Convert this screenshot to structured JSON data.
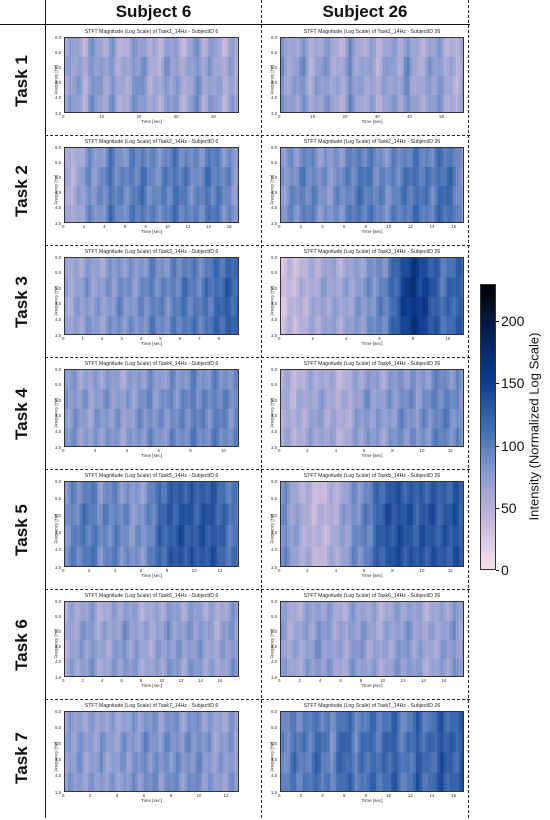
{
  "columns": [
    "Subject 6",
    "Subject 26"
  ],
  "rows": [
    "Task 1",
    "Task 2",
    "Task 3",
    "Task 4",
    "Task 5",
    "Task 6",
    "Task 7"
  ],
  "colorbar": {
    "label": "Intensity (Normalized Log Scale)",
    "ticks": [
      "0",
      "50",
      "100",
      "150",
      "200"
    ],
    "range": [
      0,
      230
    ],
    "colors": [
      "#f8e4ef",
      "#c9b9dc",
      "#8d9dd0",
      "#3f6cb0",
      "#0d3b8c",
      "#051f52",
      "#000000"
    ]
  },
  "chart_data": [
    {
      "type": "heatmap",
      "title": "STFT Magnitude (Log Scale) of Task1_14Hz - SubjectID 6",
      "xlabel": "Time [sec]",
      "ylabel": "Frequency [Hz]",
      "xticks": [
        "0",
        "10",
        "20",
        "30",
        "40"
      ],
      "xlim": [
        0,
        47
      ],
      "yticks": [
        "3.5",
        "4.0",
        "4.5",
        "5.0",
        "5.5",
        "6.0"
      ],
      "ylim": [
        3.5,
        6.0
      ],
      "intensity_profile": [
        0.35,
        0.45,
        0.3,
        0.5,
        0.35,
        0.45,
        0.3,
        0.4,
        0.5,
        0.35,
        0.3,
        0.45,
        0.4,
        0.3,
        0.5,
        0.35,
        0.45,
        0.3,
        0.4,
        0.35
      ]
    },
    {
      "type": "heatmap",
      "title": "STFT Magnitude (Log Scale) of Task1_14Hz - SubjectID 26",
      "xlabel": "Time [sec]",
      "ylabel": "Frequency [Hz]",
      "xticks": [
        "0",
        "10",
        "20",
        "30",
        "40",
        "50"
      ],
      "xlim": [
        0,
        57
      ],
      "yticks": [
        "3.5",
        "4.0",
        "4.5",
        "5.0",
        "5.5",
        "6.0"
      ],
      "ylim": [
        3.5,
        6.0
      ],
      "intensity_profile": [
        0.45,
        0.35,
        0.5,
        0.3,
        0.45,
        0.4,
        0.3,
        0.5,
        0.35,
        0.4,
        0.3,
        0.45,
        0.35,
        0.5,
        0.3,
        0.4,
        0.45,
        0.35,
        0.3,
        0.4
      ]
    },
    {
      "type": "heatmap",
      "title": "STFT Magnitude (Log Scale) of Task2_14Hz - SubjectID 6",
      "xlabel": "Time [sec]",
      "ylabel": "Frequency [Hz]",
      "xticks": [
        "0",
        "2",
        "4",
        "6",
        "8",
        "10",
        "12",
        "14",
        "16"
      ],
      "xlim": [
        0,
        17
      ],
      "yticks": [
        "3.5",
        "4.0",
        "4.5",
        "5.0",
        "5.5",
        "6.0"
      ],
      "ylim": [
        3.5,
        6.0
      ],
      "intensity_profile": [
        0.3,
        0.35,
        0.5,
        0.45,
        0.6,
        0.5,
        0.55,
        0.6,
        0.5,
        0.55,
        0.6,
        0.55,
        0.5,
        0.6,
        0.55,
        0.5,
        0.4
      ]
    },
    {
      "type": "heatmap",
      "title": "STFT Magnitude (Log Scale) of Task2_14Hz - SubjectID 26",
      "xlabel": "Time [sec]",
      "ylabel": "Frequency [Hz]",
      "xticks": [
        "0",
        "2",
        "4",
        "6",
        "8",
        "10",
        "12",
        "14",
        "16"
      ],
      "xlim": [
        0,
        17
      ],
      "yticks": [
        "3.5",
        "4.0",
        "4.5",
        "5.0",
        "5.5",
        "6.0"
      ],
      "ylim": [
        3.5,
        6.0
      ],
      "intensity_profile": [
        0.45,
        0.5,
        0.55,
        0.5,
        0.45,
        0.5,
        0.55,
        0.6,
        0.55,
        0.5,
        0.55,
        0.6,
        0.6,
        0.55,
        0.65,
        0.6,
        0.3
      ]
    },
    {
      "type": "heatmap",
      "title": "STFT Magnitude (Log Scale) of Task3_14Hz - SubjectID 6",
      "xlabel": "Time [sec]",
      "ylabel": "Frequency [Hz]",
      "xticks": [
        "0",
        "1",
        "2",
        "3",
        "4",
        "5",
        "6",
        "7",
        "8"
      ],
      "xlim": [
        0,
        9
      ],
      "yticks": [
        "3.5",
        "4.0",
        "4.5",
        "5.0",
        "5.5",
        "6.0"
      ],
      "ylim": [
        3.5,
        6.0
      ],
      "intensity_profile": [
        0.35,
        0.4,
        0.45,
        0.4,
        0.45,
        0.5,
        0.45,
        0.5,
        0.55,
        0.5,
        0.55,
        0.6,
        0.55,
        0.6,
        0.65,
        0.7,
        0.6
      ]
    },
    {
      "type": "heatmap",
      "title": "STFT Magnitude (Log Scale) of Task3_14Hz - SubjectID 26",
      "xlabel": "Time [sec]",
      "ylabel": "Frequency [Hz]",
      "xticks": [
        "0",
        "2",
        "4",
        "6",
        "8",
        "10"
      ],
      "xlim": [
        0,
        11
      ],
      "yticks": [
        "3.5",
        "4.0",
        "4.5",
        "5.0",
        "5.5",
        "6.0"
      ],
      "ylim": [
        3.5,
        6.0
      ],
      "intensity_profile": [
        0.2,
        0.25,
        0.3,
        0.35,
        0.4,
        0.35,
        0.4,
        0.45,
        0.5,
        0.55,
        0.7,
        0.9,
        0.85,
        0.75,
        0.6,
        0.7,
        0.65
      ]
    },
    {
      "type": "heatmap",
      "title": "STFT Magnitude (Log Scale) of Task4_14Hz - SubjectID 6",
      "xlabel": "Time [sec]",
      "ylabel": "Frequency [Hz]",
      "xticks": [
        "0",
        "2",
        "4",
        "6",
        "8",
        "10"
      ],
      "xlim": [
        0,
        11
      ],
      "yticks": [
        "3.5",
        "4.0",
        "4.5",
        "5.0",
        "5.5",
        "6.0"
      ],
      "ylim": [
        3.5,
        6.0
      ],
      "intensity_profile": [
        0.45,
        0.45,
        0.4,
        0.45,
        0.45,
        0.4,
        0.45,
        0.5,
        0.45,
        0.5,
        0.5,
        0.55,
        0.5,
        0.55,
        0.5,
        0.5
      ]
    },
    {
      "type": "heatmap",
      "title": "STFT Magnitude (Log Scale) of Task4_14Hz - SubjectID 26",
      "xlabel": "Time [sec]",
      "ylabel": "Frequency [Hz]",
      "xticks": [
        "0",
        "2",
        "4",
        "6",
        "8",
        "10",
        "12"
      ],
      "xlim": [
        0,
        13
      ],
      "yticks": [
        "3.5",
        "4.0",
        "4.5",
        "5.0",
        "5.5",
        "6.0"
      ],
      "ylim": [
        3.5,
        6.0
      ],
      "intensity_profile": [
        0.35,
        0.3,
        0.35,
        0.4,
        0.35,
        0.3,
        0.4,
        0.45,
        0.4,
        0.45,
        0.5,
        0.45,
        0.5,
        0.55,
        0.5,
        0.45
      ]
    },
    {
      "type": "heatmap",
      "title": "STFT Magnitude (Log Scale) of Task5_14Hz - SubjectID 6",
      "xlabel": "Time [sec]",
      "ylabel": "Frequency [Hz]",
      "xticks": [
        "0",
        "2",
        "4",
        "6",
        "8",
        "10",
        "12"
      ],
      "xlim": [
        0,
        13.5
      ],
      "yticks": [
        "3.5",
        "4.0",
        "4.5",
        "5.0",
        "5.5",
        "6.0"
      ],
      "ylim": [
        3.5,
        6.0
      ],
      "intensity_profile": [
        0.5,
        0.55,
        0.6,
        0.5,
        0.55,
        0.5,
        0.45,
        0.5,
        0.65,
        0.7,
        0.75,
        0.7,
        0.75,
        0.7,
        0.6,
        0.55
      ]
    },
    {
      "type": "heatmap",
      "title": "STFT Magnitude (Log Scale) of Task5_14Hz - SubjectID 26",
      "xlabel": "Time [sec]",
      "ylabel": "Frequency [Hz]",
      "xticks": [
        "0",
        "2",
        "4",
        "6",
        "8",
        "10",
        "12"
      ],
      "xlim": [
        0,
        13
      ],
      "yticks": [
        "3.5",
        "4.0",
        "4.5",
        "5.0",
        "5.5",
        "6.0"
      ],
      "ylim": [
        3.5,
        6.0
      ],
      "intensity_profile": [
        0.5,
        0.4,
        0.3,
        0.25,
        0.3,
        0.4,
        0.5,
        0.55,
        0.7,
        0.75,
        0.75,
        0.7,
        0.75,
        0.7,
        0.75,
        0.7
      ]
    },
    {
      "type": "heatmap",
      "title": "STFT Magnitude (Log Scale) of Task6_14Hz - SubjectID 6",
      "xlabel": "Time [sec]",
      "ylabel": "Frequency [Hz]",
      "xticks": [
        "0",
        "2",
        "4",
        "6",
        "8",
        "10",
        "12",
        "14",
        "16"
      ],
      "xlim": [
        0,
        18
      ],
      "yticks": [
        "3.5",
        "4.0",
        "4.5",
        "5.0",
        "5.5",
        "6.0"
      ],
      "ylim": [
        3.5,
        6.0
      ],
      "intensity_profile": [
        0.35,
        0.4,
        0.45,
        0.35,
        0.4,
        0.45,
        0.4,
        0.35,
        0.4,
        0.45,
        0.4,
        0.45,
        0.4,
        0.35,
        0.45,
        0.4
      ]
    },
    {
      "type": "heatmap",
      "title": "STFT Magnitude (Log Scale) of Task6_14Hz - SubjectID 26",
      "xlabel": "Time [sec]",
      "ylabel": "Frequency [Hz]",
      "xticks": [
        "0",
        "2",
        "4",
        "6",
        "8",
        "10",
        "12",
        "14",
        "16"
      ],
      "xlim": [
        0,
        18
      ],
      "yticks": [
        "3.5",
        "4.0",
        "4.5",
        "5.0",
        "5.5",
        "6.0"
      ],
      "ylim": [
        3.5,
        6.0
      ],
      "intensity_profile": [
        0.4,
        0.35,
        0.4,
        0.45,
        0.4,
        0.35,
        0.45,
        0.4,
        0.35,
        0.4,
        0.45,
        0.4,
        0.35,
        0.4,
        0.45,
        0.4
      ]
    },
    {
      "type": "heatmap",
      "title": "STFT Magnitude (Log Scale) of Task7_14Hz - SubjectID 6",
      "xlabel": "Time [sec]",
      "ylabel": "Frequency [Hz]",
      "xticks": [
        "0",
        "2",
        "4",
        "6",
        "8",
        "10",
        "12"
      ],
      "xlim": [
        0,
        13
      ],
      "yticks": [
        "3.5",
        "4.0",
        "4.5",
        "5.0",
        "5.5",
        "6.0"
      ],
      "ylim": [
        3.5,
        6.0
      ],
      "intensity_profile": [
        0.4,
        0.45,
        0.4,
        0.45,
        0.4,
        0.45,
        0.45,
        0.5,
        0.45,
        0.5,
        0.45,
        0.5,
        0.45,
        0.4,
        0.45,
        0.4
      ]
    },
    {
      "type": "heatmap",
      "title": "STFT Magnitude (Log Scale) of Task7_14Hz - SubjectID 26",
      "xlabel": "Time [sec]",
      "ylabel": "Frequency [Hz]",
      "xticks": [
        "0",
        "2",
        "4",
        "6",
        "8",
        "10",
        "12",
        "14",
        "16"
      ],
      "xlim": [
        0,
        17
      ],
      "yticks": [
        "3.5",
        "4.0",
        "4.5",
        "5.0",
        "5.5",
        "6.0"
      ],
      "ylim": [
        3.5,
        6.0
      ],
      "intensity_profile": [
        0.5,
        0.6,
        0.55,
        0.65,
        0.5,
        0.7,
        0.55,
        0.65,
        0.6,
        0.7,
        0.55,
        0.7,
        0.6,
        0.75,
        0.65,
        0.8
      ]
    }
  ]
}
